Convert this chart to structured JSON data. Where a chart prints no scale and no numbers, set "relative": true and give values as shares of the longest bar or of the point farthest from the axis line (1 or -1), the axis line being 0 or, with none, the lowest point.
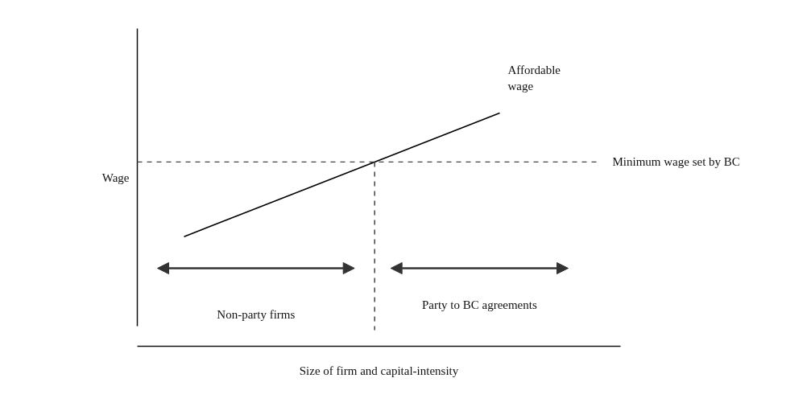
{
  "chart_data": {
    "type": "line",
    "relative": true,
    "xlabel": "Size of firm and capital-intensity",
    "ylabel": "Wage",
    "categories": [
      null,
      null
    ],
    "series": [
      {
        "name": "Affordable wage",
        "color": "#000000",
        "values": [
          0.47,
          1
        ]
      }
    ],
    "ref_lines": [
      {
        "axis": "y",
        "value": 0.79,
        "label": "Minimum wage set by BC",
        "color": "#444444",
        "line_style": "dashed"
      }
    ],
    "annotations": [
      "Non-party firms",
      "Party to BC agreements"
    ],
    "line_style": "solid"
  }
}
